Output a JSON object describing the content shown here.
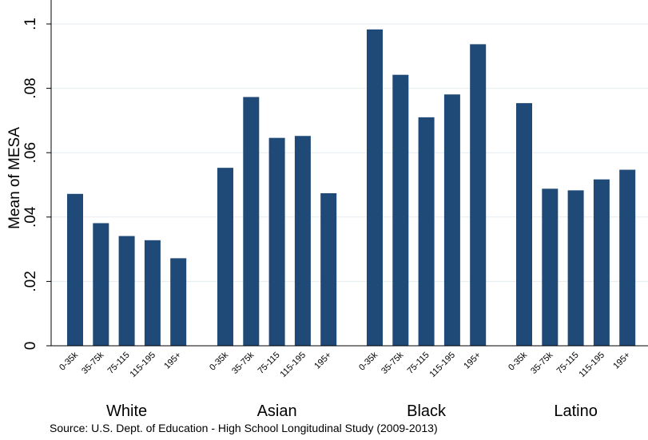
{
  "chart_data": {
    "type": "bar",
    "title": "",
    "ylabel": "Mean of MESA",
    "xlabel": "",
    "ylim": [
      0,
      0.1
    ],
    "yticks": [
      {
        "value": 0,
        "label": "0"
      },
      {
        "value": 0.02,
        "label": ".02"
      },
      {
        "value": 0.04,
        "label": ".04"
      },
      {
        "value": 0.06,
        "label": ".06"
      },
      {
        "value": 0.08,
        "label": ".08"
      },
      {
        "value": 0.1,
        "label": ".1"
      }
    ],
    "grid": true,
    "bar_color": "#1f4a78",
    "grid_color": "#e3ebf0",
    "income_labels": [
      "0-35k",
      "35-75k",
      "75-115",
      "115-195",
      "195+"
    ],
    "groups": [
      {
        "name": "White",
        "values": [
          0.0472,
          0.0381,
          0.0341,
          0.0328,
          0.0272
        ]
      },
      {
        "name": "Asian",
        "values": [
          0.0553,
          0.0773,
          0.0646,
          0.0652,
          0.0474
        ]
      },
      {
        "name": "Black",
        "values": [
          0.0983,
          0.0842,
          0.071,
          0.0781,
          0.0937
        ]
      },
      {
        "name": "Latino",
        "values": [
          0.0754,
          0.0488,
          0.0483,
          0.0517,
          0.0547
        ]
      }
    ]
  },
  "source": "Source: U.S. Dept. of Education - High School Longitudinal Study (2009-2013)"
}
